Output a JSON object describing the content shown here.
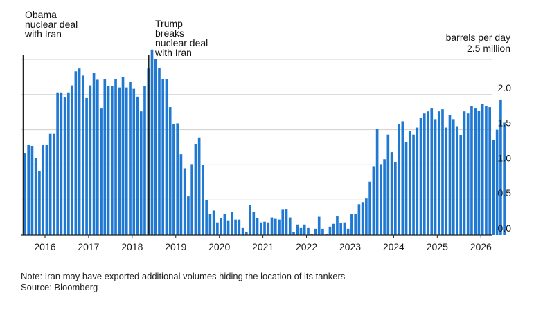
{
  "colors": {
    "bar": "#1f78d1",
    "grid": "#cfcfcf",
    "axis": "#222222",
    "text": "#1a1a1a",
    "event_line": "#222222"
  },
  "annotations": [
    {
      "id": "obama",
      "lines": [
        "Obama",
        "nuclear deal",
        "with Iran"
      ],
      "x": 2015.5
    },
    {
      "id": "trump",
      "lines": [
        "Trump",
        "breaks",
        "nuclear deal",
        "with Iran"
      ],
      "x": 2018.38
    }
  ],
  "units": {
    "line1": "barrels per day",
    "line2": "2.5 million"
  },
  "footer": {
    "note": "Note: Iran may have exported additional volumes hiding the location of its tankers",
    "source": "Source: Bloomberg"
  },
  "chart_data": {
    "type": "bar",
    "title": "",
    "xlabel": "",
    "ylabel": "barrels per day",
    "ylim": [
      0,
      2.5
    ],
    "xlim": [
      2015.46,
      2026.25
    ],
    "y_ticks": [
      "0.0",
      "0.5",
      "1.0",
      "1.5",
      "2.0"
    ],
    "y_tick_values": [
      0,
      0.5,
      1.0,
      1.5,
      2.0
    ],
    "x_ticks": [
      "2016",
      "2017",
      "2018",
      "2019",
      "2020",
      "2021",
      "2022",
      "2023",
      "2024",
      "2025",
      "2026"
    ],
    "x_tick_values": [
      2016,
      2017,
      2018,
      2019,
      2020,
      2021,
      2022,
      2023,
      2024,
      2025,
      2026
    ],
    "grid": true,
    "start": "2015-07",
    "frequency": "monthly",
    "values": [
      1.17,
      1.28,
      1.27,
      1.1,
      0.91,
      1.28,
      1.28,
      1.44,
      1.44,
      2.03,
      2.03,
      1.96,
      2.03,
      2.13,
      2.33,
      2.37,
      2.27,
      1.95,
      2.13,
      2.31,
      2.21,
      1.81,
      2.22,
      2.12,
      2.12,
      2.22,
      2.1,
      2.25,
      2.1,
      2.18,
      2.08,
      1.97,
      1.76,
      2.12,
      2.37,
      2.64,
      2.51,
      2.38,
      2.22,
      2.22,
      1.82,
      1.58,
      1.59,
      1.15,
      0.95,
      0.55,
      1.01,
      1.29,
      1.39,
      1.0,
      0.5,
      0.3,
      0.35,
      0.18,
      0.24,
      0.3,
      0.21,
      0.33,
      0.22,
      0.22,
      0.1,
      0.05,
      0.43,
      0.33,
      0.24,
      0.18,
      0.19,
      0.18,
      0.25,
      0.23,
      0.22,
      0.36,
      0.37,
      0.25,
      0.04,
      0.15,
      0.1,
      0.15,
      0.1,
      0.02,
      0.09,
      0.26,
      0.09,
      0.02,
      0.12,
      0.16,
      0.27,
      0.17,
      0.18,
      0.09,
      0.3,
      0.3,
      0.44,
      0.47,
      0.52,
      0.76,
      0.98,
      1.51,
      1.01,
      1.08,
      1.43,
      1.18,
      1.04,
      1.58,
      1.62,
      1.32,
      1.48,
      1.43,
      1.53,
      1.67,
      1.73,
      1.76,
      1.81,
      1.65,
      1.76,
      1.79,
      1.53,
      1.71,
      1.65,
      1.55,
      1.42,
      1.76,
      1.73,
      1.84,
      1.81,
      1.77,
      1.86,
      1.84,
      1.82,
      1.35,
      1.5,
      1.93,
      1.6
    ]
  }
}
